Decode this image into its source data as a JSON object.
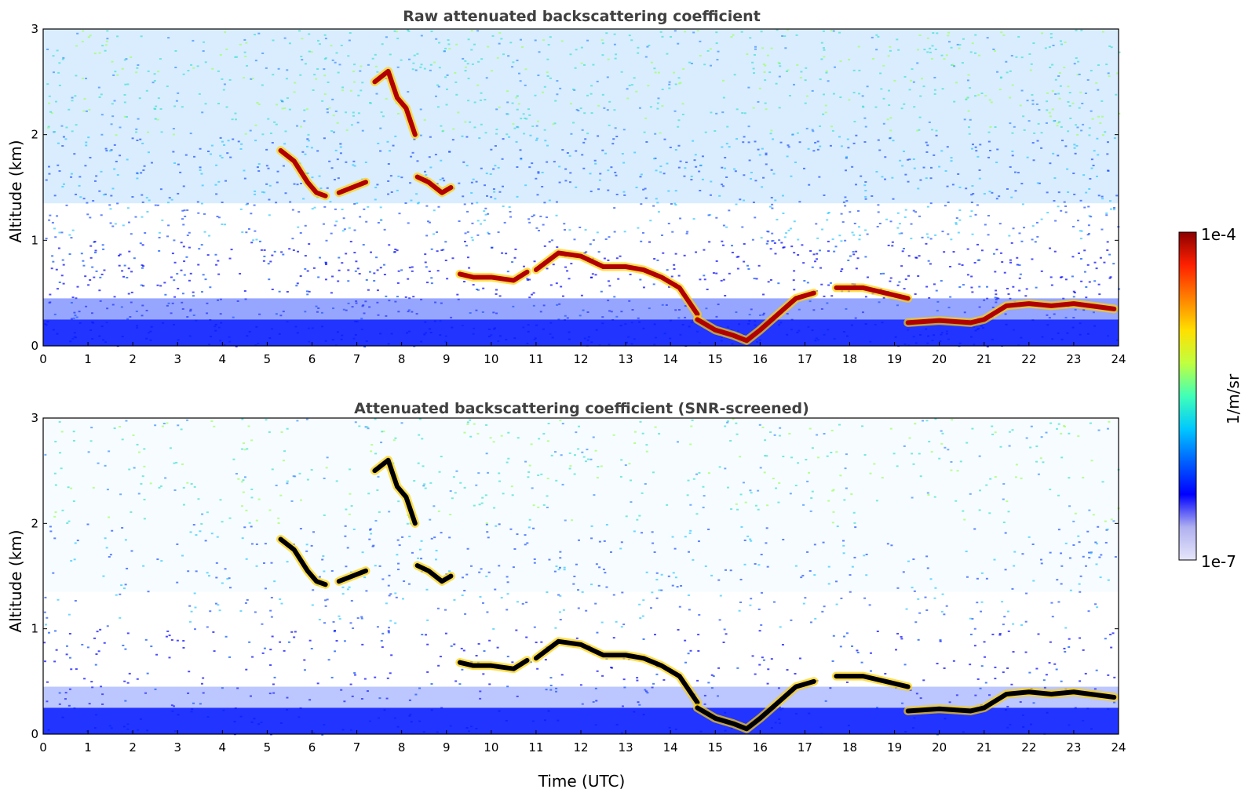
{
  "chart_data": [
    {
      "type": "heatmap",
      "title": "Raw attenuated backscattering coefficient",
      "xlabel": "",
      "ylabel": "Altitude (km)",
      "xlim": [
        0,
        24
      ],
      "ylim": [
        0,
        3
      ],
      "xticks": [
        "0",
        "1",
        "2",
        "3",
        "4",
        "5",
        "6",
        "7",
        "8",
        "9",
        "10",
        "11",
        "12",
        "13",
        "14",
        "15",
        "16",
        "17",
        "18",
        "19",
        "20",
        "21",
        "22",
        "23",
        "24"
      ],
      "yticks": [
        "0",
        "1",
        "2",
        "3"
      ],
      "screened": false,
      "cloud_layers": [
        {
          "x": [
            5.3,
            5.6,
            5.9,
            6.1,
            6.3
          ],
          "y": [
            1.85,
            1.75,
            1.55,
            1.45,
            1.42
          ]
        },
        {
          "x": [
            6.6,
            6.9,
            7.2
          ],
          "y": [
            1.45,
            1.5,
            1.55
          ]
        },
        {
          "x": [
            7.4,
            7.7,
            7.9,
            8.1,
            8.3
          ],
          "y": [
            2.5,
            2.6,
            2.35,
            2.25,
            2.0
          ]
        },
        {
          "x": [
            8.35,
            8.6,
            8.9,
            9.1
          ],
          "y": [
            1.6,
            1.55,
            1.45,
            1.5
          ]
        },
        {
          "x": [
            9.3,
            9.6,
            10.0,
            10.5,
            10.8
          ],
          "y": [
            0.68,
            0.65,
            0.65,
            0.62,
            0.7
          ]
        },
        {
          "x": [
            11.0,
            11.5,
            12.0,
            12.5,
            13.0,
            13.4,
            13.8,
            14.2,
            14.6
          ],
          "y": [
            0.72,
            0.88,
            0.85,
            0.75,
            0.75,
            0.72,
            0.65,
            0.55,
            0.3
          ]
        },
        {
          "x": [
            14.6,
            15.0,
            15.4,
            15.7,
            16.0,
            16.4,
            16.8,
            17.2
          ],
          "y": [
            0.25,
            0.15,
            0.1,
            0.05,
            0.15,
            0.3,
            0.45,
            0.5
          ]
        },
        {
          "x": [
            17.7,
            18.3,
            18.8,
            19.3
          ],
          "y": [
            0.55,
            0.55,
            0.5,
            0.45
          ]
        },
        {
          "x": [
            19.3,
            20.0,
            20.7,
            21.0,
            21.5,
            22.0,
            22.5,
            23.0,
            23.9
          ],
          "y": [
            0.22,
            0.24,
            0.22,
            0.25,
            0.38,
            0.4,
            0.38,
            0.4,
            0.35
          ]
        }
      ]
    },
    {
      "type": "heatmap",
      "title": "Attenuated backscattering coefficient (SNR-screened)",
      "xlabel": "Time (UTC)",
      "ylabel": "Altitude (km)",
      "xlim": [
        0,
        24
      ],
      "ylim": [
        0,
        3
      ],
      "xticks": [
        "0",
        "1",
        "2",
        "3",
        "4",
        "5",
        "6",
        "7",
        "8",
        "9",
        "10",
        "11",
        "12",
        "13",
        "14",
        "15",
        "16",
        "17",
        "18",
        "19",
        "20",
        "21",
        "22",
        "23",
        "24"
      ],
      "yticks": [
        "0",
        "1",
        "2",
        "3"
      ],
      "screened": true,
      "cloud_layers": [
        {
          "x": [
            5.3,
            5.6,
            5.9,
            6.1,
            6.3
          ],
          "y": [
            1.85,
            1.75,
            1.55,
            1.45,
            1.42
          ]
        },
        {
          "x": [
            6.6,
            6.9,
            7.2
          ],
          "y": [
            1.45,
            1.5,
            1.55
          ]
        },
        {
          "x": [
            7.4,
            7.7,
            7.9,
            8.1,
            8.3
          ],
          "y": [
            2.5,
            2.6,
            2.35,
            2.25,
            2.0
          ]
        },
        {
          "x": [
            8.35,
            8.6,
            8.9,
            9.1
          ],
          "y": [
            1.6,
            1.55,
            1.45,
            1.5
          ]
        },
        {
          "x": [
            9.3,
            9.6,
            10.0,
            10.5,
            10.8
          ],
          "y": [
            0.68,
            0.65,
            0.65,
            0.62,
            0.7
          ]
        },
        {
          "x": [
            11.0,
            11.5,
            12.0,
            12.5,
            13.0,
            13.4,
            13.8,
            14.2,
            14.6
          ],
          "y": [
            0.72,
            0.88,
            0.85,
            0.75,
            0.75,
            0.72,
            0.65,
            0.55,
            0.3
          ]
        },
        {
          "x": [
            14.6,
            15.0,
            15.4,
            15.7,
            16.0,
            16.4,
            16.8,
            17.2
          ],
          "y": [
            0.25,
            0.15,
            0.1,
            0.05,
            0.15,
            0.3,
            0.45,
            0.5
          ]
        },
        {
          "x": [
            17.7,
            18.3,
            18.8,
            19.3
          ],
          "y": [
            0.55,
            0.55,
            0.5,
            0.45
          ]
        },
        {
          "x": [
            19.3,
            20.0,
            20.7,
            21.0,
            21.5,
            22.0,
            22.5,
            23.0,
            23.9
          ],
          "y": [
            0.22,
            0.24,
            0.22,
            0.25,
            0.38,
            0.4,
            0.38,
            0.4,
            0.35
          ]
        }
      ]
    }
  ],
  "colorbar": {
    "label": "1/m/sr",
    "max_label": "1e-4",
    "min_label": "1e-7",
    "colors": [
      "#e6e6fa",
      "#b0b0f0",
      "#0000ff",
      "#0060ff",
      "#00c8ff",
      "#40ffb8",
      "#c0ff40",
      "#ffe000",
      "#ff8000",
      "#ff2000",
      "#8b0000"
    ]
  }
}
